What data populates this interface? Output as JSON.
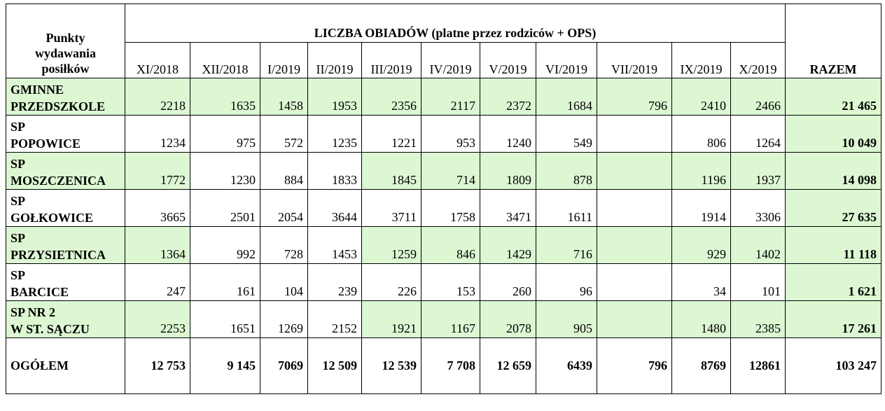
{
  "header": {
    "corner": "Punkty\nwydawania\nposiłków",
    "super": "LICZBA OBIADÓW (platne przez rodziców + OPS)",
    "months": [
      "XI/2018",
      "XII/2018",
      "I/2019",
      "II/2019",
      "III/2019",
      "IV/2019",
      "V/2019",
      "VI/2019",
      "VII/2019",
      "IX/2019",
      "X/2019"
    ],
    "total": "RAZEM"
  },
  "rows": [
    {
      "name": "GMINNE\nPRZEDSZKOLE",
      "values": [
        "2218",
        "1635",
        "1458",
        "1953",
        "2356",
        "2117",
        "2372",
        "1684",
        "796",
        "2410",
        "2466"
      ],
      "total": "21 465"
    },
    {
      "name": "SP\nPOPOWICE",
      "values": [
        "1234",
        "975",
        "572",
        "1235",
        "1221",
        "953",
        "1240",
        "549",
        "",
        "806",
        "1264"
      ],
      "total": "10 049"
    },
    {
      "name": "SP\nMOSZCZENICA",
      "values": [
        "1772",
        "1230",
        "884",
        "1833",
        "1845",
        "714",
        "1809",
        "878",
        "",
        "1196",
        "1937"
      ],
      "total": "14 098"
    },
    {
      "name": "SP\nGOŁKOWICE",
      "values": [
        "3665",
        "2501",
        "2054",
        "3644",
        "3711",
        "1758",
        "3471",
        "1611",
        "",
        "1914",
        "3306"
      ],
      "total": "27 635"
    },
    {
      "name": "SP\nPRZYSIETNICA",
      "values": [
        "1364",
        "992",
        "728",
        "1453",
        "1259",
        "846",
        "1429",
        "716",
        "",
        "929",
        "1402"
      ],
      "total": "11 118"
    },
    {
      "name": "SP\nBARCICE",
      "values": [
        "247",
        "161",
        "104",
        "239",
        "226",
        "153",
        "260",
        "96",
        "",
        "34",
        "101"
      ],
      "total": "1 621"
    },
    {
      "name": "SP NR 2\n W ST. SĄCZU",
      "values": [
        "2253",
        "1651",
        "1269",
        "2152",
        "1921",
        "1167",
        "2078",
        "905",
        "",
        "1480",
        "2385"
      ],
      "total": "17 261"
    }
  ],
  "footer": {
    "name": "OGÓŁEM",
    "values": [
      "12 753",
      "9 145",
      "7069",
      "12 509",
      "12 539",
      "7 708",
      "12 659",
      "6439",
      "796",
      "8769",
      "12861"
    ],
    "total": "103  247"
  },
  "colors": {
    "highlight": "#ddf7d3",
    "border": "#000000"
  }
}
